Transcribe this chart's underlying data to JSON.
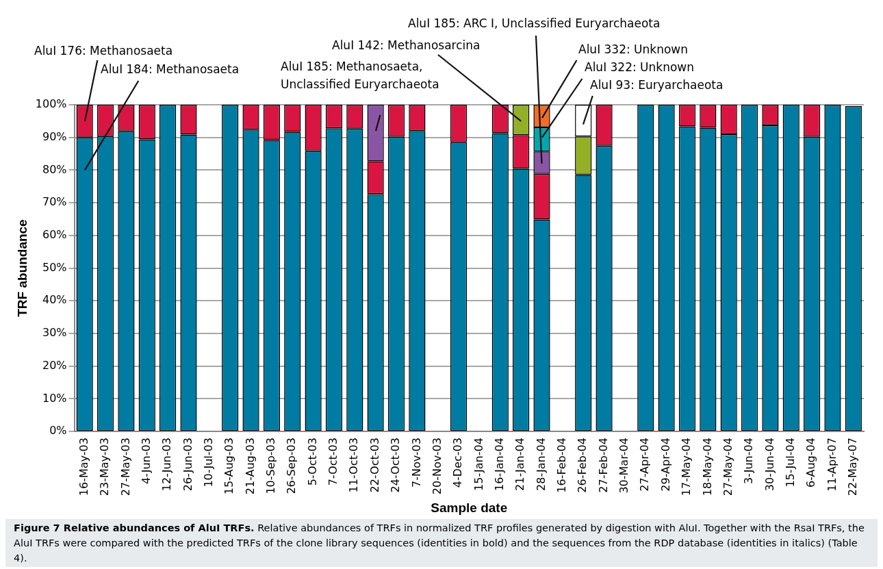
{
  "chart_data": {
    "type": "bar",
    "stacked": true,
    "title": "Figure 7 Relative abundances of AluI TRFs.",
    "xlabel": "Sample date",
    "ylabel": "TRF abundance",
    "categories": [
      "16-May-03",
      "23-May-03",
      "27-May-03",
      "4-Jun-03",
      "12-Jun-03",
      "26-Jun-03",
      "10-Jul-03",
      "15-Aug-03",
      "21-Aug-03",
      "10-Sep-03",
      "26-Sep-03",
      "5-Oct-03",
      "7-Oct-03",
      "11-Oct-03",
      "22-Oct-03",
      "24-Oct-03",
      "7-Nov-03",
      "20-Nov-03",
      "4-Dec-03",
      "15-Jan-04",
      "16-Jan-04",
      "21-Jan-04",
      "28-Jan-04",
      "16-Feb-04",
      "26-Feb-04",
      "27-Feb-04",
      "30-Mar-04",
      "27-Apr-04",
      "29-Apr-04",
      "17-May-04",
      "18-May-04",
      "27-May-04",
      "3-Jun-04",
      "30-Jun-04",
      "15-Jul-04",
      "6-Aug-04",
      "11-Apr-07",
      "22-May-07"
    ],
    "series": [
      {
        "color": "#007ba1",
        "values": [
          90,
          90.4,
          91.9,
          89.4,
          100,
          90.9,
          null,
          100,
          92.4,
          89.2,
          91.7,
          85.8,
          92.8,
          92.7,
          72.7,
          90.2,
          92.0,
          null,
          88.5,
          null,
          91.3,
          80.4,
          64.9,
          null,
          78.5,
          87.5,
          null,
          100,
          100,
          93.4,
          93.0,
          91.0,
          100,
          93.7,
          100,
          90.2,
          100,
          99.6
        ]
      },
      {
        "color": "#d81641",
        "values": [
          10,
          9.6,
          8.1,
          10.6,
          null,
          9.1,
          null,
          null,
          7.6,
          10.8,
          8.3,
          14.2,
          7.2,
          7.3,
          10,
          9.8,
          8,
          null,
          11.5,
          null,
          8.7,
          10.3,
          14,
          null,
          null,
          12.5,
          null,
          null,
          null,
          6.6,
          7,
          9,
          null,
          6.3,
          null,
          9.8,
          null,
          null
        ]
      },
      {
        "color": "#8b55a5",
        "values": [
          null,
          null,
          null,
          null,
          null,
          null,
          null,
          null,
          null,
          null,
          null,
          null,
          null,
          null,
          17.3,
          null,
          null,
          null,
          null,
          null,
          null,
          null,
          6.8,
          null,
          null,
          null,
          null,
          null,
          null,
          null,
          null,
          null,
          null,
          null,
          null,
          null,
          null,
          null
        ]
      },
      {
        "color": "#93af26",
        "values": [
          null,
          null,
          null,
          null,
          null,
          null,
          null,
          null,
          null,
          null,
          null,
          null,
          null,
          null,
          null,
          null,
          null,
          null,
          null,
          null,
          null,
          9.3,
          null,
          null,
          11.8,
          null,
          null,
          null,
          null,
          null,
          null,
          null,
          null,
          null,
          null,
          null,
          null,
          null
        ]
      },
      {
        "color": "#00a7ad",
        "values": [
          null,
          null,
          null,
          null,
          null,
          null,
          null,
          null,
          null,
          null,
          null,
          null,
          null,
          null,
          null,
          null,
          null,
          null,
          null,
          null,
          null,
          null,
          7.4,
          null,
          null,
          null,
          null,
          null,
          null,
          null,
          null,
          null,
          null,
          null,
          null,
          null,
          null,
          null
        ]
      },
      {
        "color": "#f26d25",
        "values": [
          null,
          null,
          null,
          null,
          null,
          null,
          null,
          null,
          null,
          null,
          null,
          null,
          null,
          null,
          null,
          null,
          null,
          null,
          null,
          null,
          null,
          null,
          6.9,
          null,
          null,
          null,
          null,
          null,
          null,
          null,
          null,
          null,
          null,
          null,
          null,
          null,
          null,
          null
        ]
      },
      {
        "color": "#ffffff",
        "values": [
          null,
          null,
          null,
          null,
          null,
          null,
          null,
          null,
          null,
          null,
          null,
          null,
          null,
          null,
          null,
          null,
          null,
          null,
          null,
          null,
          null,
          null,
          null,
          null,
          9.7,
          null,
          null,
          null,
          null,
          null,
          null,
          null,
          null,
          null,
          null,
          null,
          null,
          null
        ]
      }
    ],
    "ylim": [
      0,
      100
    ],
    "yticks": [
      {
        "value": 0,
        "label": "0%"
      },
      {
        "value": 10,
        "label": "10%"
      },
      {
        "value": 20,
        "label": "20%"
      },
      {
        "value": 30,
        "label": "30%"
      },
      {
        "value": 40,
        "label": "40%"
      },
      {
        "value": 50,
        "label": "50%"
      },
      {
        "value": 60,
        "label": "60%"
      },
      {
        "value": 70,
        "label": "70%"
      },
      {
        "value": 80,
        "label": "80%"
      },
      {
        "value": 90,
        "label": "90%"
      },
      {
        "value": 100,
        "label": "100%"
      }
    ],
    "grid": "y",
    "legend": false,
    "annotations": [
      "AluI 176: Methanosaeta",
      "AluI 184: Methanosaeta",
      "AluI 185: Methanosaeta, Unclassified Euryarchaeota",
      "AluI 142: Methanosarcina",
      "AluI 185: ARC I, Unclassified Euryarchaeota",
      "AluI 332: Unknown",
      "AluI 322: Unknown",
      "AluI 93: Euryarchaeota",
      "Relative abundances of TRFs in normalized TRF profiles generated by digestion with AluI. Together with the RsaI TRFs, the AluI TRFs were compared with the predicted TRFs of the clone library sequences (identities in bold) and the sequences from the RDP database (identities in italics) (Table 4)."
    ]
  }
}
